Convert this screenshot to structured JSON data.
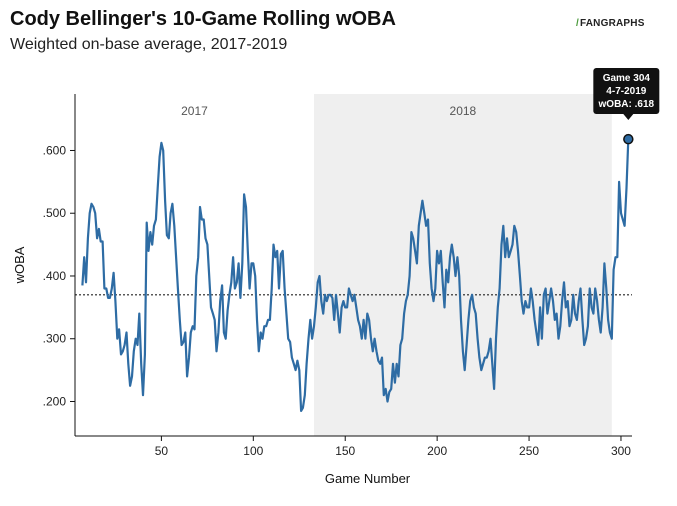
{
  "header": {
    "title": "Cody Bellinger's 10-Game Rolling wOBA",
    "subtitle": "Weighted on-base average, 2017-2019",
    "logo_text": "FANGRAPHS",
    "logo_mark": "/"
  },
  "colors": {
    "line": "#2e6ca4",
    "season_shade": "#efefef",
    "avg_line": "#222222",
    "tooltip_bg": "#111111"
  },
  "chart_data": {
    "type": "line",
    "title": "Cody Bellinger's 10-Game Rolling wOBA",
    "subtitle": "Weighted on-base average, 2017-2019",
    "xlabel": "Game Number",
    "ylabel": "wOBA",
    "xlim": [
      3,
      306
    ],
    "ylim": [
      0.145,
      0.69
    ],
    "xticks": [
      50,
      100,
      150,
      200,
      250,
      300
    ],
    "xtick_labels": [
      "50",
      "100",
      "150",
      "200",
      "250",
      "300"
    ],
    "yticks": [
      0.2,
      0.3,
      0.4,
      0.5,
      0.6
    ],
    "ytick_labels": [
      ".200",
      ".300",
      ".400",
      ".500",
      ".600"
    ],
    "reference_line": {
      "y": 0.37,
      "style": "dotted"
    },
    "seasons": [
      {
        "label": "2017",
        "shaded": false,
        "x_start": 3,
        "x_end": 133
      },
      {
        "label": "2018",
        "shaded": true,
        "x_start": 133,
        "x_end": 295
      }
    ],
    "annotation": {
      "x": 304,
      "y": 0.618,
      "lines": [
        "Game 304",
        "4-7-2019",
        "wOBA: .618"
      ]
    },
    "series": [
      {
        "points": [
          [
            7,
            0.385
          ],
          [
            8,
            0.43
          ],
          [
            9,
            0.39
          ],
          [
            10,
            0.46
          ],
          [
            11,
            0.5
          ],
          [
            12,
            0.515
          ],
          [
            13,
            0.51
          ],
          [
            14,
            0.5
          ],
          [
            15,
            0.46
          ],
          [
            16,
            0.475
          ],
          [
            17,
            0.455
          ],
          [
            18,
            0.455
          ],
          [
            19,
            0.38
          ],
          [
            20,
            0.38
          ],
          [
            21,
            0.365
          ],
          [
            22,
            0.365
          ],
          [
            23,
            0.38
          ],
          [
            24,
            0.405
          ],
          [
            25,
            0.36
          ],
          [
            26,
            0.3
          ],
          [
            27,
            0.315
          ],
          [
            28,
            0.275
          ],
          [
            29,
            0.28
          ],
          [
            30,
            0.29
          ],
          [
            31,
            0.31
          ],
          [
            32,
            0.26
          ],
          [
            33,
            0.225
          ],
          [
            34,
            0.24
          ],
          [
            35,
            0.28
          ],
          [
            36,
            0.3
          ],
          [
            37,
            0.29
          ],
          [
            38,
            0.34
          ],
          [
            39,
            0.26
          ],
          [
            40,
            0.21
          ],
          [
            41,
            0.275
          ],
          [
            42,
            0.485
          ],
          [
            43,
            0.44
          ],
          [
            44,
            0.47
          ],
          [
            45,
            0.45
          ],
          [
            46,
            0.48
          ],
          [
            47,
            0.49
          ],
          [
            48,
            0.54
          ],
          [
            49,
            0.59
          ],
          [
            50,
            0.612
          ],
          [
            51,
            0.6
          ],
          [
            52,
            0.52
          ],
          [
            53,
            0.465
          ],
          [
            54,
            0.46
          ],
          [
            55,
            0.5
          ],
          [
            56,
            0.515
          ],
          [
            57,
            0.48
          ],
          [
            58,
            0.43
          ],
          [
            59,
            0.38
          ],
          [
            60,
            0.33
          ],
          [
            61,
            0.29
          ],
          [
            62,
            0.295
          ],
          [
            63,
            0.31
          ],
          [
            64,
            0.24
          ],
          [
            65,
            0.27
          ],
          [
            66,
            0.31
          ],
          [
            67,
            0.32
          ],
          [
            68,
            0.315
          ],
          [
            69,
            0.4
          ],
          [
            70,
            0.43
          ],
          [
            71,
            0.51
          ],
          [
            72,
            0.49
          ],
          [
            73,
            0.49
          ],
          [
            74,
            0.46
          ],
          [
            75,
            0.45
          ],
          [
            76,
            0.4
          ],
          [
            77,
            0.35
          ],
          [
            78,
            0.34
          ],
          [
            79,
            0.33
          ],
          [
            80,
            0.28
          ],
          [
            81,
            0.31
          ],
          [
            82,
            0.36
          ],
          [
            83,
            0.385
          ],
          [
            84,
            0.31
          ],
          [
            85,
            0.3
          ],
          [
            86,
            0.345
          ],
          [
            87,
            0.37
          ],
          [
            88,
            0.39
          ],
          [
            89,
            0.43
          ],
          [
            90,
            0.38
          ],
          [
            91,
            0.39
          ],
          [
            92,
            0.42
          ],
          [
            93,
            0.365
          ],
          [
            94,
            0.42
          ],
          [
            95,
            0.53
          ],
          [
            96,
            0.51
          ],
          [
            97,
            0.44
          ],
          [
            98,
            0.38
          ],
          [
            99,
            0.42
          ],
          [
            100,
            0.42
          ],
          [
            101,
            0.4
          ],
          [
            102,
            0.33
          ],
          [
            103,
            0.28
          ],
          [
            104,
            0.31
          ],
          [
            105,
            0.3
          ],
          [
            106,
            0.32
          ],
          [
            107,
            0.32
          ],
          [
            108,
            0.33
          ],
          [
            109,
            0.33
          ],
          [
            110,
            0.38
          ],
          [
            111,
            0.45
          ],
          [
            112,
            0.43
          ],
          [
            113,
            0.44
          ],
          [
            114,
            0.38
          ],
          [
            115,
            0.435
          ],
          [
            116,
            0.44
          ],
          [
            117,
            0.38
          ],
          [
            118,
            0.34
          ],
          [
            119,
            0.3
          ],
          [
            120,
            0.295
          ],
          [
            121,
            0.27
          ],
          [
            122,
            0.26
          ],
          [
            123,
            0.25
          ],
          [
            124,
            0.265
          ],
          [
            125,
            0.25
          ],
          [
            126,
            0.185
          ],
          [
            127,
            0.19
          ],
          [
            128,
            0.21
          ],
          [
            129,
            0.26
          ],
          [
            130,
            0.3
          ],
          [
            131,
            0.33
          ],
          [
            132,
            0.3
          ],
          [
            133,
            0.32
          ],
          [
            134,
            0.35
          ],
          [
            135,
            0.39
          ],
          [
            136,
            0.4
          ],
          [
            137,
            0.36
          ],
          [
            138,
            0.34
          ],
          [
            139,
            0.37
          ],
          [
            140,
            0.36
          ],
          [
            141,
            0.37
          ],
          [
            142,
            0.37
          ],
          [
            143,
            0.365
          ],
          [
            144,
            0.33
          ],
          [
            145,
            0.37
          ],
          [
            146,
            0.34
          ],
          [
            147,
            0.31
          ],
          [
            148,
            0.35
          ],
          [
            149,
            0.36
          ],
          [
            150,
            0.35
          ],
          [
            151,
            0.35
          ],
          [
            152,
            0.38
          ],
          [
            153,
            0.37
          ],
          [
            154,
            0.36
          ],
          [
            155,
            0.37
          ],
          [
            156,
            0.35
          ],
          [
            157,
            0.33
          ],
          [
            158,
            0.32
          ],
          [
            159,
            0.3
          ],
          [
            160,
            0.33
          ],
          [
            161,
            0.3
          ],
          [
            162,
            0.34
          ],
          [
            163,
            0.33
          ],
          [
            164,
            0.3
          ],
          [
            165,
            0.28
          ],
          [
            166,
            0.3
          ],
          [
            167,
            0.28
          ],
          [
            168,
            0.265
          ],
          [
            169,
            0.26
          ],
          [
            170,
            0.27
          ],
          [
            171,
            0.21
          ],
          [
            172,
            0.22
          ],
          [
            173,
            0.2
          ],
          [
            174,
            0.215
          ],
          [
            175,
            0.22
          ],
          [
            176,
            0.26
          ],
          [
            177,
            0.23
          ],
          [
            178,
            0.26
          ],
          [
            179,
            0.24
          ],
          [
            180,
            0.29
          ],
          [
            181,
            0.3
          ],
          [
            182,
            0.34
          ],
          [
            183,
            0.36
          ],
          [
            184,
            0.37
          ],
          [
            185,
            0.4
          ],
          [
            186,
            0.47
          ],
          [
            187,
            0.46
          ],
          [
            188,
            0.44
          ],
          [
            189,
            0.42
          ],
          [
            190,
            0.48
          ],
          [
            191,
            0.5
          ],
          [
            192,
            0.52
          ],
          [
            193,
            0.5
          ],
          [
            194,
            0.48
          ],
          [
            195,
            0.49
          ],
          [
            196,
            0.42
          ],
          [
            197,
            0.38
          ],
          [
            198,
            0.36
          ],
          [
            199,
            0.38
          ],
          [
            200,
            0.44
          ],
          [
            201,
            0.42
          ],
          [
            202,
            0.44
          ],
          [
            203,
            0.39
          ],
          [
            204,
            0.35
          ],
          [
            205,
            0.41
          ],
          [
            206,
            0.39
          ],
          [
            207,
            0.43
          ],
          [
            208,
            0.45
          ],
          [
            209,
            0.43
          ],
          [
            210,
            0.4
          ],
          [
            211,
            0.43
          ],
          [
            212,
            0.4
          ],
          [
            213,
            0.33
          ],
          [
            214,
            0.28
          ],
          [
            215,
            0.25
          ],
          [
            216,
            0.29
          ],
          [
            217,
            0.33
          ],
          [
            218,
            0.36
          ],
          [
            219,
            0.37
          ],
          [
            220,
            0.35
          ],
          [
            221,
            0.34
          ],
          [
            222,
            0.3
          ],
          [
            223,
            0.27
          ],
          [
            224,
            0.25
          ],
          [
            225,
            0.26
          ],
          [
            226,
            0.27
          ],
          [
            227,
            0.27
          ],
          [
            228,
            0.28
          ],
          [
            229,
            0.3
          ],
          [
            230,
            0.26
          ],
          [
            231,
            0.22
          ],
          [
            232,
            0.3
          ],
          [
            233,
            0.35
          ],
          [
            234,
            0.38
          ],
          [
            235,
            0.45
          ],
          [
            236,
            0.48
          ],
          [
            237,
            0.43
          ],
          [
            238,
            0.46
          ],
          [
            239,
            0.43
          ],
          [
            240,
            0.44
          ],
          [
            241,
            0.45
          ],
          [
            242,
            0.48
          ],
          [
            243,
            0.47
          ],
          [
            244,
            0.44
          ],
          [
            245,
            0.4
          ],
          [
            246,
            0.36
          ],
          [
            247,
            0.34
          ],
          [
            248,
            0.36
          ],
          [
            249,
            0.35
          ],
          [
            250,
            0.35
          ],
          [
            251,
            0.38
          ],
          [
            252,
            0.36
          ],
          [
            253,
            0.33
          ],
          [
            254,
            0.31
          ],
          [
            255,
            0.29
          ],
          [
            256,
            0.35
          ],
          [
            257,
            0.3
          ],
          [
            258,
            0.37
          ],
          [
            259,
            0.38
          ],
          [
            260,
            0.34
          ],
          [
            261,
            0.36
          ],
          [
            262,
            0.38
          ],
          [
            263,
            0.36
          ],
          [
            264,
            0.33
          ],
          [
            265,
            0.34
          ],
          [
            266,
            0.3
          ],
          [
            267,
            0.32
          ],
          [
            268,
            0.36
          ],
          [
            269,
            0.39
          ],
          [
            270,
            0.35
          ],
          [
            271,
            0.36
          ],
          [
            272,
            0.32
          ],
          [
            273,
            0.33
          ],
          [
            274,
            0.37
          ],
          [
            275,
            0.34
          ],
          [
            276,
            0.33
          ],
          [
            277,
            0.36
          ],
          [
            278,
            0.38
          ],
          [
            279,
            0.33
          ],
          [
            280,
            0.29
          ],
          [
            281,
            0.3
          ],
          [
            282,
            0.32
          ],
          [
            283,
            0.38
          ],
          [
            284,
            0.35
          ],
          [
            285,
            0.34
          ],
          [
            286,
            0.38
          ],
          [
            287,
            0.36
          ],
          [
            288,
            0.33
          ],
          [
            289,
            0.31
          ],
          [
            290,
            0.35
          ],
          [
            291,
            0.42
          ],
          [
            292,
            0.38
          ],
          [
            293,
            0.33
          ],
          [
            294,
            0.31
          ],
          [
            295,
            0.3
          ],
          [
            296,
            0.41
          ],
          [
            297,
            0.43
          ],
          [
            298,
            0.43
          ],
          [
            299,
            0.55
          ],
          [
            300,
            0.5
          ],
          [
            301,
            0.49
          ],
          [
            302,
            0.48
          ],
          [
            303,
            0.54
          ],
          [
            304,
            0.618
          ]
        ]
      }
    ]
  }
}
